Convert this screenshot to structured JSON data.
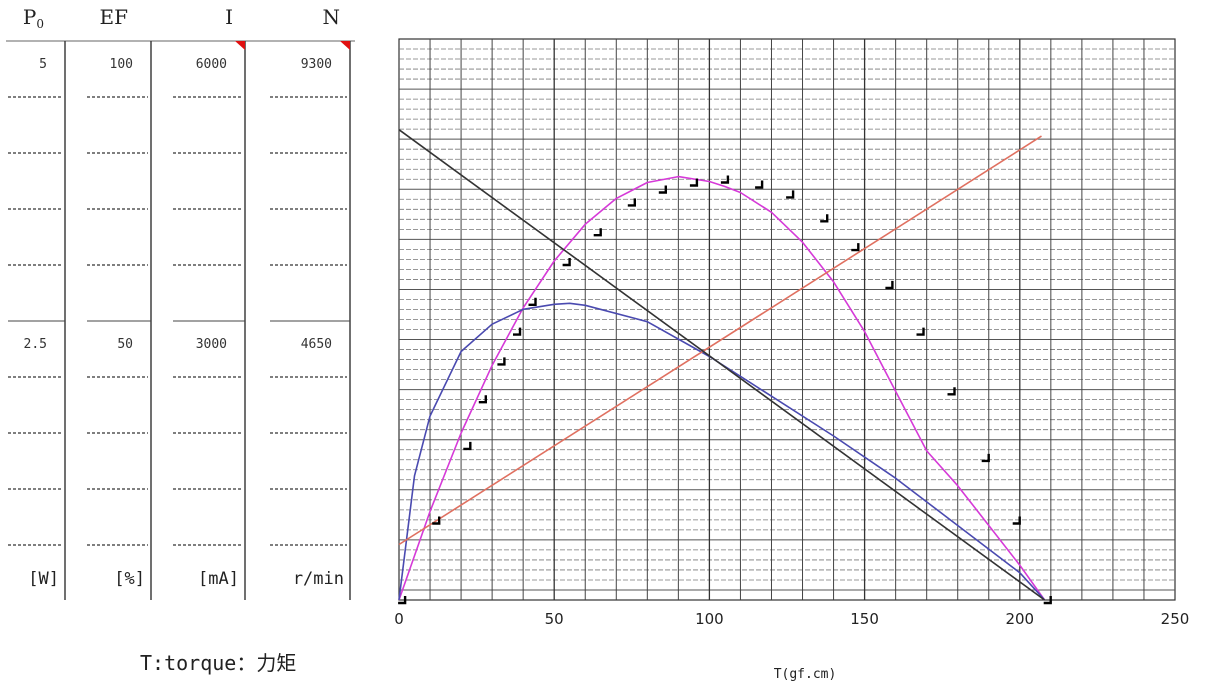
{
  "chart_data": {
    "type": "line",
    "x_axis": {
      "label": "T(gf.cm)",
      "min": 0,
      "max": 250,
      "ticks": [
        "0",
        "50",
        "100",
        "150",
        "200",
        "250"
      ]
    },
    "y_axes": [
      {
        "name_main": "P",
        "name_sub": "0",
        "unit": "[W]",
        "top": "5",
        "mid": "2.5",
        "max": 5
      },
      {
        "name_main": "EF",
        "name_sub": "",
        "unit": "[%]",
        "top": "100",
        "mid": "50",
        "max": 100
      },
      {
        "name_main": "I",
        "name_sub": "",
        "unit": "[mA]",
        "top": "6000",
        "mid": "3000",
        "max": 6000
      },
      {
        "name_main": "N",
        "name_sub": "",
        "unit": "r/min",
        "top": "9300",
        "mid": "4650",
        "max": 9300
      }
    ],
    "series": [
      {
        "name": "P0",
        "axis": 0,
        "color": "#d63ad8",
        "x": [
          0,
          10,
          20,
          30,
          40,
          50,
          60,
          70,
          80,
          90,
          100,
          105,
          110,
          120,
          130,
          140,
          150,
          160,
          170,
          180,
          190,
          200,
          208
        ],
        "y": [
          0,
          0.89,
          1.68,
          2.36,
          2.94,
          3.41,
          3.78,
          4.04,
          4.2,
          4.26,
          4.21,
          4.16,
          4.1,
          3.9,
          3.6,
          3.2,
          2.7,
          2.1,
          1.5,
          1.15,
          0.75,
          0.35,
          0
        ]
      },
      {
        "name": "EF",
        "axis": 1,
        "color": "#4a4ab0",
        "x": [
          0,
          5,
          10,
          20,
          30,
          40,
          50,
          55,
          60,
          80,
          100,
          120,
          140,
          160,
          180,
          200,
          208
        ],
        "y": [
          0,
          25,
          37,
          50,
          55.5,
          58.5,
          59.5,
          59.7,
          59.3,
          56,
          49,
          41,
          33,
          24.5,
          15,
          5.5,
          0
        ]
      },
      {
        "name": "I",
        "axis": 2,
        "color": "#e07060",
        "x": [
          0,
          207
        ],
        "y": [
          670,
          5600
        ]
      },
      {
        "name": "N",
        "axis": 3,
        "color": "#333333",
        "x": [
          0,
          208
        ],
        "y": [
          8800,
          0
        ]
      }
    ],
    "markers": {
      "x": [
        1,
        12,
        22,
        27,
        33,
        38,
        43,
        54,
        64,
        75,
        85,
        95,
        105,
        116,
        126,
        137,
        147,
        158,
        168,
        178,
        189,
        199,
        209
      ],
      "y": [
        0,
        0.8,
        1.55,
        2.02,
        2.4,
        2.7,
        3.0,
        3.4,
        3.7,
        4.0,
        4.13,
        4.2,
        4.23,
        4.18,
        4.08,
        3.84,
        3.55,
        3.17,
        2.7,
        2.1,
        1.43,
        0.8,
        0
      ]
    },
    "grid": true
  },
  "note": "T:torque：力矩"
}
